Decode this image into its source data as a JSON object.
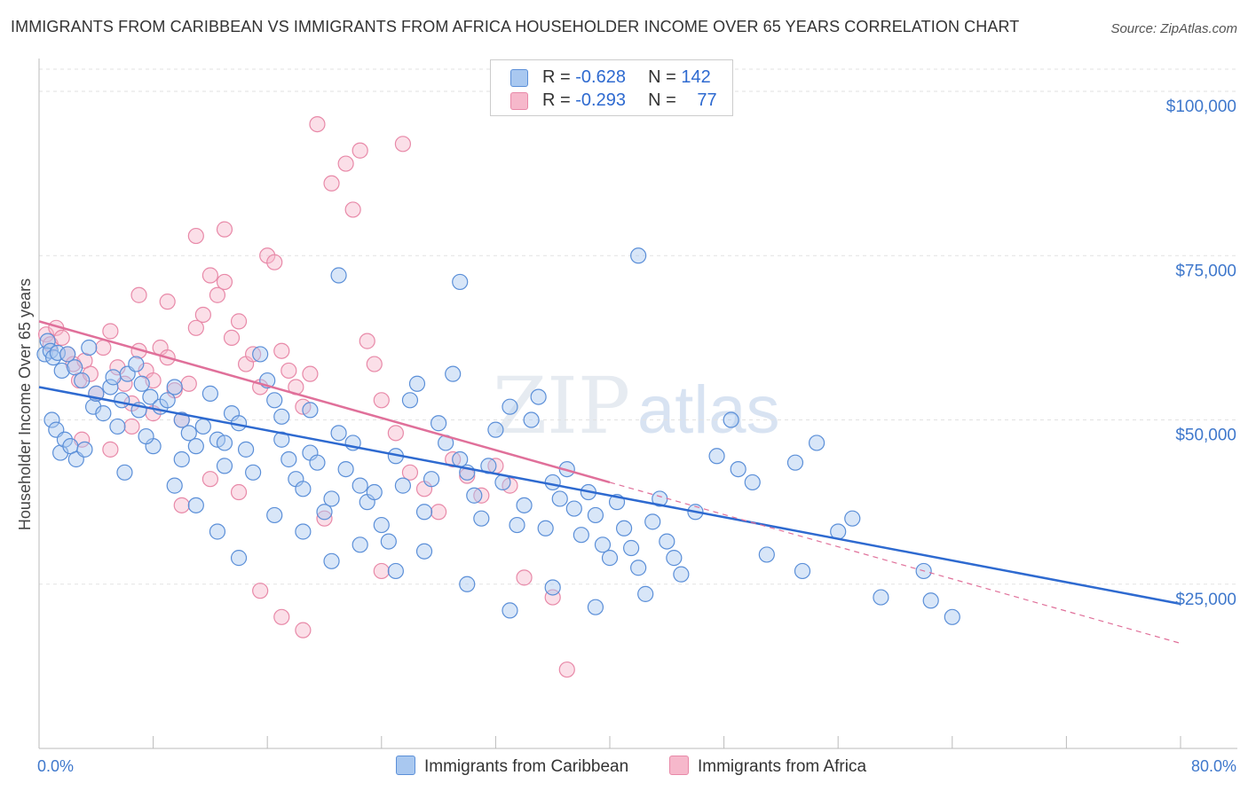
{
  "title": "IMMIGRANTS FROM CARIBBEAN VS IMMIGRANTS FROM AFRICA HOUSEHOLDER INCOME OVER 65 YEARS CORRELATION CHART",
  "source": "Source: ZipAtlas.com",
  "watermark": {
    "zip": "ZIP",
    "atlas": "atlas"
  },
  "legend": {
    "r_label": "R =",
    "n_label": "N =",
    "caribbean": {
      "r": "-0.628",
      "n": "142"
    },
    "africa": {
      "r": "-0.293",
      "n": "77"
    }
  },
  "bottom_legend": {
    "caribbean": "Immigrants from Caribbean",
    "africa": "Immigrants from Africa"
  },
  "colors": {
    "caribbean_fill": "#a9c8f0",
    "caribbean_stroke": "#5b8fd8",
    "caribbean_line": "#2e6ad0",
    "africa_fill": "#f6b8cb",
    "africa_stroke": "#e889a8",
    "africa_line": "#e0709a",
    "tick_label": "#3f78cc"
  },
  "chart_data": {
    "type": "scatter",
    "title": "IMMIGRANTS FROM CARIBBEAN VS IMMIGRANTS FROM AFRICA HOUSEHOLDER INCOME OVER 65 YEARS CORRELATION CHART",
    "xlabel": "",
    "ylabel": "Householder Income Over 65 years",
    "xlim": [
      0,
      80
    ],
    "ylim": [
      0,
      105000
    ],
    "x_tick_labels": {
      "min": "0.0%",
      "max": "80.0%"
    },
    "y_ticks": [
      {
        "value": 25000,
        "label": "$25,000"
      },
      {
        "value": 50000,
        "label": "$50,000"
      },
      {
        "value": 75000,
        "label": "$75,000"
      },
      {
        "value": 100000,
        "label": "$100,000"
      }
    ],
    "grid": "horizontal dashed",
    "legend_position": "top-center",
    "series": [
      {
        "name": "Immigrants from Caribbean",
        "trend": {
          "x": [
            0,
            80
          ],
          "y": [
            55000,
            22000
          ],
          "style": "solid"
        },
        "points": [
          [
            0.4,
            60000
          ],
          [
            0.6,
            62000
          ],
          [
            0.8,
            60500
          ],
          [
            1.0,
            59500
          ],
          [
            1.3,
            60200
          ],
          [
            1.6,
            57500
          ],
          [
            2.0,
            60000
          ],
          [
            2.5,
            58000
          ],
          [
            3.0,
            56000
          ],
          [
            3.5,
            61000
          ],
          [
            0.9,
            50000
          ],
          [
            1.2,
            48500
          ],
          [
            1.5,
            45000
          ],
          [
            1.8,
            47000
          ],
          [
            2.2,
            46000
          ],
          [
            2.6,
            44000
          ],
          [
            3.2,
            45500
          ],
          [
            3.8,
            52000
          ],
          [
            4.5,
            51000
          ],
          [
            5.0,
            55000
          ],
          [
            5.2,
            56500
          ],
          [
            5.8,
            53000
          ],
          [
            6.2,
            57000
          ],
          [
            6.8,
            58500
          ],
          [
            7.2,
            55500
          ],
          [
            7.8,
            53500
          ],
          [
            8.5,
            52000
          ],
          [
            9.0,
            53000
          ],
          [
            9.5,
            55000
          ],
          [
            10.0,
            50000
          ],
          [
            10.5,
            48000
          ],
          [
            11.0,
            46000
          ],
          [
            11.5,
            49000
          ],
          [
            12.0,
            54000
          ],
          [
            12.5,
            47000
          ],
          [
            13.0,
            43000
          ],
          [
            13.5,
            51000
          ],
          [
            14.0,
            49500
          ],
          [
            14.5,
            45500
          ],
          [
            15.0,
            42000
          ],
          [
            15.5,
            60000
          ],
          [
            16.0,
            56000
          ],
          [
            16.5,
            53000
          ],
          [
            17.0,
            50500
          ],
          [
            17.5,
            44000
          ],
          [
            18.0,
            41000
          ],
          [
            18.5,
            39500
          ],
          [
            19.0,
            45000
          ],
          [
            19.5,
            43500
          ],
          [
            20.0,
            36000
          ],
          [
            20.5,
            38000
          ],
          [
            21.0,
            48000
          ],
          [
            21.5,
            42500
          ],
          [
            22.0,
            46500
          ],
          [
            22.5,
            40000
          ],
          [
            23.0,
            37500
          ],
          [
            23.5,
            39000
          ],
          [
            24.0,
            34000
          ],
          [
            24.5,
            31500
          ],
          [
            25.0,
            44500
          ],
          [
            25.5,
            40000
          ],
          [
            26.0,
            53000
          ],
          [
            26.5,
            55500
          ],
          [
            27.0,
            36000
          ],
          [
            27.5,
            41000
          ],
          [
            28.0,
            49500
          ],
          [
            28.5,
            46500
          ],
          [
            29.0,
            57000
          ],
          [
            29.5,
            44000
          ],
          [
            30.0,
            42000
          ],
          [
            30.5,
            38500
          ],
          [
            31.0,
            35000
          ],
          [
            31.5,
            43000
          ],
          [
            32.0,
            48500
          ],
          [
            32.5,
            40500
          ],
          [
            33.0,
            52000
          ],
          [
            33.5,
            34000
          ],
          [
            34.0,
            37000
          ],
          [
            34.5,
            50000
          ],
          [
            35.0,
            53500
          ],
          [
            35.5,
            33500
          ],
          [
            36.0,
            40500
          ],
          [
            36.5,
            38000
          ],
          [
            37.0,
            42500
          ],
          [
            37.5,
            36500
          ],
          [
            38.0,
            32500
          ],
          [
            38.5,
            39000
          ],
          [
            39.0,
            35500
          ],
          [
            39.5,
            31000
          ],
          [
            40.0,
            29000
          ],
          [
            40.5,
            37500
          ],
          [
            41.0,
            33500
          ],
          [
            41.5,
            30500
          ],
          [
            42.0,
            27500
          ],
          [
            42.5,
            23500
          ],
          [
            43.0,
            34500
          ],
          [
            43.5,
            38000
          ],
          [
            44.0,
            31500
          ],
          [
            44.5,
            29000
          ],
          [
            45.0,
            26500
          ],
          [
            46.0,
            36000
          ],
          [
            47.5,
            44500
          ],
          [
            48.5,
            50000
          ],
          [
            49.0,
            42500
          ],
          [
            50.0,
            40500
          ],
          [
            51.0,
            29500
          ],
          [
            53.0,
            43500
          ],
          [
            53.5,
            27000
          ],
          [
            54.5,
            46500
          ],
          [
            56.0,
            33000
          ],
          [
            57.0,
            35000
          ],
          [
            59.0,
            23000
          ],
          [
            62.0,
            27000
          ],
          [
            62.5,
            22500
          ],
          [
            64.0,
            20000
          ],
          [
            21.0,
            72000
          ],
          [
            29.5,
            71000
          ],
          [
            42.0,
            75000
          ],
          [
            6.0,
            42000
          ],
          [
            8.0,
            46000
          ],
          [
            9.5,
            40000
          ],
          [
            11.0,
            37000
          ],
          [
            12.5,
            33000
          ],
          [
            14.0,
            29000
          ],
          [
            16.5,
            35500
          ],
          [
            18.5,
            33000
          ],
          [
            20.5,
            28500
          ],
          [
            22.5,
            31000
          ],
          [
            25.0,
            27000
          ],
          [
            27.0,
            30000
          ],
          [
            30.0,
            25000
          ],
          [
            33.0,
            21000
          ],
          [
            36.0,
            24500
          ],
          [
            39.0,
            21500
          ],
          [
            4.0,
            54000
          ],
          [
            5.5,
            49000
          ],
          [
            7.0,
            51500
          ],
          [
            7.5,
            47500
          ],
          [
            10.0,
            44000
          ],
          [
            13.0,
            46500
          ],
          [
            17.0,
            47000
          ],
          [
            19.0,
            51500
          ]
        ]
      },
      {
        "name": "Immigrants from Africa",
        "trend": {
          "x": [
            0,
            40
          ],
          "y": [
            65000,
            40500
          ],
          "style": "solid",
          "extended_to": [
            80,
            16000
          ],
          "extended_style": "dashed"
        },
        "points": [
          [
            0.5,
            63000
          ],
          [
            0.8,
            61500
          ],
          [
            1.2,
            64000
          ],
          [
            1.6,
            62500
          ],
          [
            2.0,
            60000
          ],
          [
            2.4,
            58500
          ],
          [
            2.8,
            56000
          ],
          [
            3.2,
            59000
          ],
          [
            3.6,
            57000
          ],
          [
            4.0,
            54000
          ],
          [
            4.5,
            61000
          ],
          [
            5.0,
            63500
          ],
          [
            5.5,
            58000
          ],
          [
            6.0,
            55500
          ],
          [
            6.5,
            52500
          ],
          [
            7.0,
            60500
          ],
          [
            7.5,
            57500
          ],
          [
            8.0,
            56000
          ],
          [
            8.5,
            61000
          ],
          [
            9.0,
            59500
          ],
          [
            9.5,
            54500
          ],
          [
            10.0,
            50000
          ],
          [
            10.5,
            55500
          ],
          [
            11.0,
            64000
          ],
          [
            11.5,
            66000
          ],
          [
            12.0,
            72000
          ],
          [
            12.5,
            69000
          ],
          [
            13.0,
            71000
          ],
          [
            13.5,
            62500
          ],
          [
            14.0,
            65000
          ],
          [
            14.5,
            58500
          ],
          [
            15.0,
            60000
          ],
          [
            15.5,
            55000
          ],
          [
            16.0,
            75000
          ],
          [
            16.5,
            74000
          ],
          [
            17.0,
            60500
          ],
          [
            17.5,
            57500
          ],
          [
            18.0,
            55000
          ],
          [
            18.5,
            52000
          ],
          [
            19.0,
            57000
          ],
          [
            19.5,
            95000
          ],
          [
            20.5,
            86000
          ],
          [
            21.5,
            89000
          ],
          [
            22.0,
            82000
          ],
          [
            22.5,
            91000
          ],
          [
            23.0,
            62000
          ],
          [
            23.5,
            58500
          ],
          [
            24.0,
            53000
          ],
          [
            25.0,
            48000
          ],
          [
            26.0,
            42000
          ],
          [
            27.0,
            39500
          ],
          [
            28.0,
            36000
          ],
          [
            29.0,
            44000
          ],
          [
            30.0,
            41500
          ],
          [
            31.0,
            38500
          ],
          [
            32.0,
            43000
          ],
          [
            33.0,
            40000
          ],
          [
            34.0,
            26000
          ],
          [
            36.0,
            23000
          ],
          [
            37.0,
            12000
          ],
          [
            3.0,
            47000
          ],
          [
            5.0,
            45500
          ],
          [
            6.5,
            49000
          ],
          [
            8.0,
            51000
          ],
          [
            10.0,
            37000
          ],
          [
            12.0,
            41000
          ],
          [
            14.0,
            39000
          ],
          [
            15.5,
            24000
          ],
          [
            17.0,
            20000
          ],
          [
            18.5,
            18000
          ],
          [
            20.0,
            35000
          ],
          [
            24.0,
            27000
          ],
          [
            25.5,
            92000
          ],
          [
            11.0,
            78000
          ],
          [
            13.0,
            79000
          ],
          [
            7.0,
            69000
          ],
          [
            9.0,
            68000
          ]
        ]
      }
    ]
  }
}
